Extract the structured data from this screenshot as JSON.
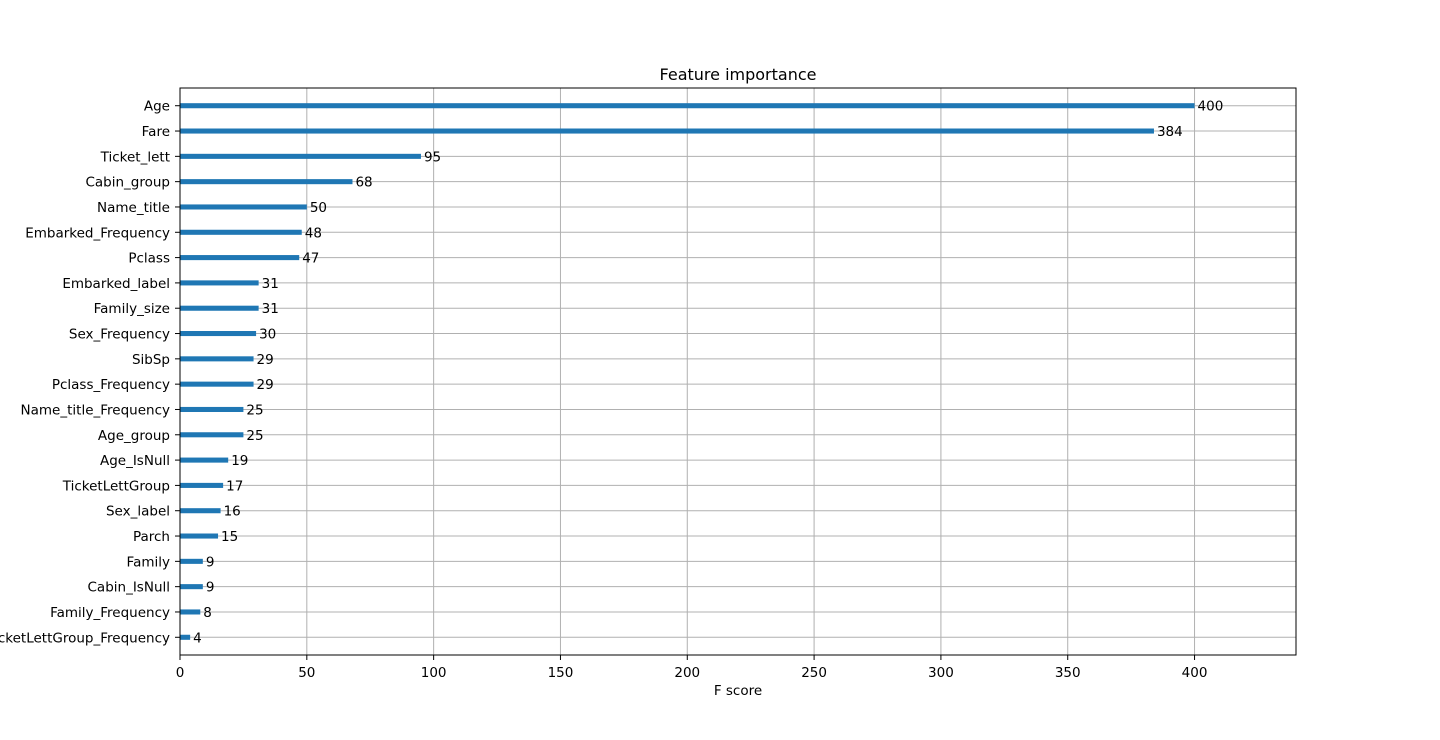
{
  "chart_data": {
    "type": "bar",
    "orientation": "horizontal",
    "title": "Feature importance",
    "xlabel": "F score",
    "ylabel": "",
    "xlim": [
      0,
      440
    ],
    "xticks": [
      0,
      50,
      100,
      150,
      200,
      250,
      300,
      350,
      400
    ],
    "grid": true,
    "categories": [
      "Age",
      "Fare",
      "Ticket_lett",
      "Cabin_group",
      "Name_title",
      "Embarked_Frequency",
      "Pclass",
      "Embarked_label",
      "Family_size",
      "Sex_Frequency",
      "SibSp",
      "Pclass_Frequency",
      "Name_title_Frequency",
      "Age_group",
      "Age_IsNull",
      "TicketLettGroup",
      "Sex_label",
      "Parch",
      "Family",
      "Cabin_IsNull",
      "Family_Frequency",
      "TicketLettGroup_Frequency"
    ],
    "values": [
      400,
      384,
      95,
      68,
      50,
      48,
      47,
      31,
      31,
      30,
      29,
      29,
      25,
      25,
      19,
      17,
      16,
      15,
      9,
      9,
      8,
      4
    ],
    "bar_color": "#1f77b4",
    "grid_color": "#b0b0b0"
  }
}
